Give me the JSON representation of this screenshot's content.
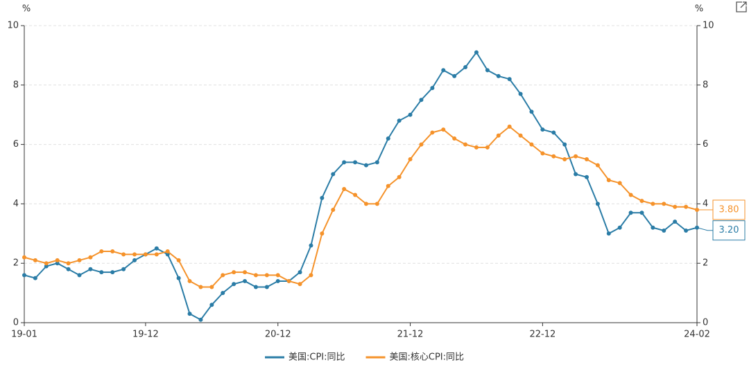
{
  "chart_data": {
    "type": "line",
    "y_label": "%",
    "y2_label": "%",
    "categories": [
      "19-01",
      null,
      null,
      null,
      null,
      null,
      null,
      null,
      null,
      null,
      null,
      "19-12",
      null,
      null,
      null,
      null,
      null,
      null,
      null,
      null,
      null,
      null,
      null,
      "20-12",
      null,
      null,
      null,
      null,
      null,
      null,
      null,
      null,
      null,
      null,
      null,
      "21-12",
      null,
      null,
      null,
      null,
      null,
      null,
      null,
      null,
      null,
      null,
      null,
      "22-12",
      null,
      null,
      null,
      null,
      null,
      null,
      null,
      null,
      null,
      null,
      null,
      null,
      null,
      "24-02"
    ],
    "series": [
      {
        "name": "美国:CPI:同比",
        "color": "#2a7ca6",
        "values": [
          1.6,
          1.5,
          1.9,
          2.0,
          1.8,
          1.6,
          1.8,
          1.7,
          1.7,
          1.8,
          2.1,
          2.3,
          2.5,
          2.3,
          1.5,
          0.3,
          0.1,
          0.6,
          1.0,
          1.3,
          1.4,
          1.2,
          1.2,
          1.4,
          1.4,
          1.7,
          2.6,
          4.2,
          5.0,
          5.4,
          5.4,
          5.3,
          5.4,
          6.2,
          6.8,
          7.0,
          7.5,
          7.9,
          8.5,
          8.3,
          8.6,
          9.1,
          8.5,
          8.3,
          8.2,
          7.7,
          7.1,
          6.5,
          6.4,
          6.0,
          5.0,
          4.9,
          4.0,
          3.0,
          3.2,
          3.7,
          3.7,
          3.2,
          3.1,
          3.4,
          3.1,
          3.2
        ],
        "value_labels": [
          null,
          null,
          null,
          null,
          null,
          null,
          null,
          null,
          null,
          null,
          null,
          null,
          null,
          null,
          null,
          null,
          null,
          null,
          null,
          null,
          null,
          null,
          null,
          null,
          null,
          null,
          null,
          null,
          null,
          null,
          null,
          null,
          null,
          null,
          null,
          null,
          null,
          null,
          null,
          null,
          null,
          null,
          null,
          null,
          null,
          null,
          null,
          null,
          null,
          null,
          null,
          null,
          null,
          null,
          null,
          null,
          null,
          null,
          null,
          null,
          null,
          "3.20"
        ]
      },
      {
        "name": "美国:核心CPI:同比",
        "color": "#f5922a",
        "values": [
          2.2,
          2.1,
          2.0,
          2.1,
          2.0,
          2.1,
          2.2,
          2.4,
          2.4,
          2.3,
          2.3,
          2.3,
          2.3,
          2.4,
          2.1,
          1.4,
          1.2,
          1.2,
          1.6,
          1.7,
          1.7,
          1.6,
          1.6,
          1.6,
          1.4,
          1.3,
          1.6,
          3.0,
          3.8,
          4.5,
          4.3,
          4.0,
          4.0,
          4.6,
          4.9,
          5.5,
          6.0,
          6.4,
          6.5,
          6.2,
          6.0,
          5.9,
          5.9,
          6.3,
          6.6,
          6.3,
          6.0,
          5.7,
          5.6,
          5.5,
          5.6,
          5.5,
          5.3,
          4.8,
          4.7,
          4.3,
          4.1,
          4.0,
          4.0,
          3.9,
          3.9,
          3.8
        ],
        "value_labels": [
          null,
          null,
          null,
          null,
          null,
          null,
          null,
          null,
          null,
          null,
          null,
          null,
          null,
          null,
          null,
          null,
          null,
          null,
          null,
          null,
          null,
          null,
          null,
          null,
          null,
          null,
          null,
          null,
          null,
          null,
          null,
          null,
          null,
          null,
          null,
          null,
          null,
          null,
          null,
          null,
          null,
          null,
          null,
          null,
          null,
          null,
          null,
          null,
          null,
          null,
          null,
          null,
          null,
          null,
          null,
          null,
          null,
          null,
          null,
          null,
          null,
          "3.80"
        ]
      }
    ],
    "ylim": [
      0,
      10
    ],
    "yticks": [
      0,
      2,
      4,
      6,
      8,
      10
    ],
    "y2lim": [
      0,
      10
    ],
    "y2ticks": [
      0,
      2,
      4,
      6,
      8,
      10
    ],
    "grid": true
  }
}
